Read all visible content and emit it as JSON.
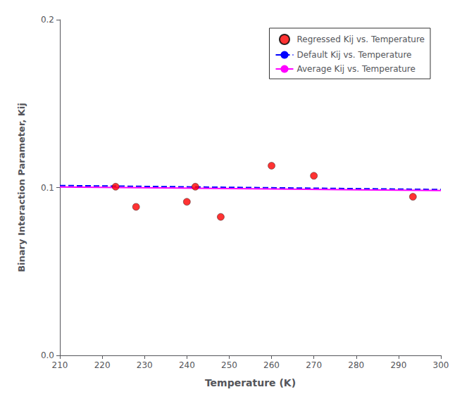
{
  "chart_data": {
    "type": "scatter",
    "xlabel": "Temperature (K)",
    "ylabel": "Binary Interaction Parameter, Kij",
    "series": [
      {
        "name": "Regressed Kij vs. Temperature",
        "type": "scatter",
        "color": "#FF0000",
        "marker": "circle",
        "x": [
          223.17,
          228.0,
          240.0,
          242.0,
          248.0,
          260.0,
          270.0,
          293.4
        ],
        "values": [
          0.1005,
          0.0885,
          0.0915,
          0.1005,
          0.0825,
          0.113,
          0.107,
          0.0945
        ]
      },
      {
        "name": "Default Kij vs. Temperature",
        "type": "line",
        "color": "#0000FF",
        "line_style": "dashed",
        "x": [
          210,
          300
        ],
        "values": [
          0.1012,
          0.0988
        ]
      },
      {
        "name": "Average Kij vs. Temperature",
        "type": "line",
        "color": "#FF00FF",
        "line_style": "solid",
        "x": [
          210,
          300
        ],
        "values": [
          0.1003,
          0.0982
        ]
      }
    ],
    "xlim": [
      210,
      300
    ],
    "ylim": [
      0.0,
      0.2
    ],
    "xticks": [
      210,
      220,
      230,
      240,
      250,
      260,
      270,
      280,
      290,
      300
    ],
    "yticks": [
      {
        "value": 0.0,
        "label": "0.0"
      },
      0.1,
      0.2
    ],
    "grid": false,
    "legend": "upper right"
  }
}
